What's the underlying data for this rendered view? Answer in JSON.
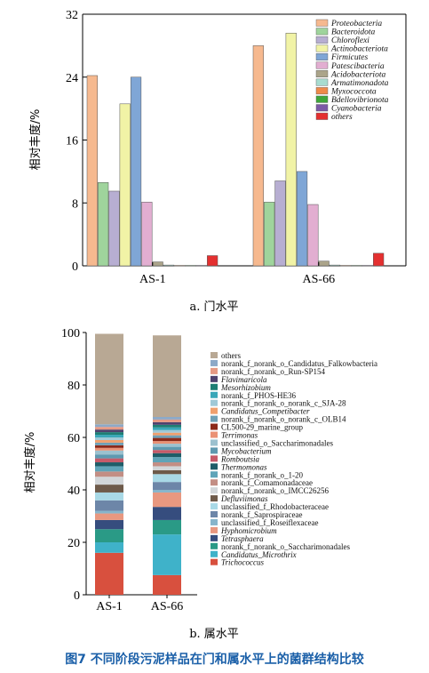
{
  "caption": "图7  不同阶段污泥样品在门和属水平上的菌群结构比较",
  "chart_data": [
    {
      "type": "bar",
      "subtitle": "a. 门水平",
      "ylabel": "相对丰度/%",
      "ylim": [
        0,
        32
      ],
      "yticks": [
        "0",
        "8",
        "16",
        "24",
        "32"
      ],
      "categories": [
        "AS-1",
        "AS-66"
      ],
      "series": [
        {
          "name": "Proteobacteria",
          "color": "#f6b98f",
          "values": [
            24.2,
            28.0
          ]
        },
        {
          "name": "Bacteroidota",
          "color": "#9fd49c",
          "values": [
            10.6,
            8.1
          ]
        },
        {
          "name": "Chloroflexi",
          "color": "#b7aed2",
          "values": [
            9.5,
            10.8
          ]
        },
        {
          "name": "Actinobacteriota",
          "color": "#f1f3a6",
          "values": [
            20.6,
            29.6
          ]
        },
        {
          "name": "Firmicutes",
          "color": "#7fa6d6",
          "values": [
            24.0,
            12.0
          ]
        },
        {
          "name": "Patescibacteria",
          "color": "#e2aed1",
          "values": [
            8.1,
            7.8
          ]
        },
        {
          "name": "Acidobacteriota",
          "color": "#aba48a",
          "values": [
            0.5,
            0.6
          ]
        },
        {
          "name": "Armatimonadota",
          "color": "#a8dcd0",
          "values": [
            0.1,
            0.1
          ]
        },
        {
          "name": "Myxococcota",
          "color": "#ef8a4a",
          "values": [
            0.05,
            0.05
          ]
        },
        {
          "name": "Bdellovibrionota",
          "color": "#3fa63a",
          "values": [
            0.05,
            0.05
          ]
        },
        {
          "name": "Cyanobacteria",
          "color": "#7c5aa6",
          "values": [
            0.05,
            0.05
          ]
        },
        {
          "name": "others",
          "color": "#e43030",
          "values": [
            1.3,
            1.6
          ]
        }
      ]
    },
    {
      "type": "bar",
      "stacked": true,
      "subtitle": "b. 属水平",
      "ylabel": "相对丰度/%",
      "ylim": [
        0,
        100
      ],
      "yticks": [
        "0",
        "20",
        "40",
        "60",
        "80",
        "100"
      ],
      "categories": [
        "AS-1",
        "AS-66"
      ],
      "series": [
        {
          "name": "Trichococcus",
          "color": "#d8503e",
          "values": [
            16.0,
            7.5
          ]
        },
        {
          "name": "Candidatus_Microthrix",
          "color": "#3fb2c9",
          "values": [
            4.0,
            15.5
          ]
        },
        {
          "name": "norank_f_norank_o_Saccharimonadales",
          "color": "#2a9a86",
          "values": [
            5.0,
            5.5
          ]
        },
        {
          "name": "Tetrasphaera",
          "color": "#364d7e",
          "values": [
            3.5,
            5.0
          ]
        },
        {
          "name": "Hyphomicrobium",
          "color": "#e89880",
          "values": [
            2.5,
            5.5
          ]
        },
        {
          "name": "unclassified_f_Roseiflexaceae",
          "color": "#87b5cb",
          "values": [
            1.0,
            1.0
          ]
        },
        {
          "name": "norank_f_Saprospiraceae",
          "color": "#6d86a8",
          "values": [
            4.0,
            3.0
          ]
        },
        {
          "name": "unclassified_f_Rhodobacteraceae",
          "color": "#a9d9e6",
          "values": [
            3.0,
            3.0
          ]
        },
        {
          "name": "Defluviimonas",
          "color": "#6e5a4a",
          "values": [
            3.0,
            1.5
          ]
        },
        {
          "name": "norank_f_norank_o_IMCC26256",
          "color": "#d2d6d9",
          "values": [
            3.0,
            1.5
          ]
        },
        {
          "name": "norank_f_Comamonadaceae",
          "color": "#c38e84",
          "values": [
            2.0,
            1.5
          ]
        },
        {
          "name": "norank_f_norank_o_1-20",
          "color": "#5fa4b8",
          "values": [
            2.0,
            2.0
          ]
        },
        {
          "name": "Thermomonas",
          "color": "#1f5d68",
          "values": [
            1.5,
            1.5
          ]
        },
        {
          "name": "Romboutsia",
          "color": "#c65a69",
          "values": [
            1.5,
            1.2
          ]
        },
        {
          "name": "Mycobacterium",
          "color": "#5e99b0",
          "values": [
            1.5,
            1.2
          ]
        },
        {
          "name": "unclassified_o_Saccharimonadales",
          "color": "#9cc1cf",
          "values": [
            1.5,
            1.2
          ]
        },
        {
          "name": "Terrimonas",
          "color": "#ea9174",
          "values": [
            1.0,
            1.0
          ]
        },
        {
          "name": "CL500-29_marine_group",
          "color": "#8b2a1a",
          "values": [
            1.0,
            1.2
          ]
        },
        {
          "name": "norank_f_norank_o_norank_c_OLB14",
          "color": "#6fa0b6",
          "values": [
            1.0,
            1.0
          ]
        },
        {
          "name": "Candidatus_Competibacter",
          "color": "#f0a06e",
          "values": [
            1.0,
            1.0
          ]
        },
        {
          "name": "norank_f_norank_o_norank_c_SJA-28",
          "color": "#a0c9d7",
          "values": [
            1.0,
            1.0
          ]
        },
        {
          "name": "norank_f_PHOS-HE36",
          "color": "#39a7b8",
          "values": [
            1.0,
            1.0
          ]
        },
        {
          "name": "Mesorhizobium",
          "color": "#1e7e74",
          "values": [
            1.0,
            1.0
          ]
        },
        {
          "name": "Flavimaricola",
          "color": "#4f426e",
          "values": [
            1.0,
            1.0
          ]
        },
        {
          "name": "norank_f_norank_o_Run-SP154",
          "color": "#e69a84",
          "values": [
            1.0,
            1.0
          ]
        },
        {
          "name": "norank_f_norank_o_Candidatus_Falkowbacteria",
          "color": "#8da9c7",
          "values": [
            1.0,
            1.0
          ]
        },
        {
          "name": "others",
          "color": "#b8a894",
          "values": [
            34.5,
            31.1
          ]
        }
      ]
    }
  ]
}
